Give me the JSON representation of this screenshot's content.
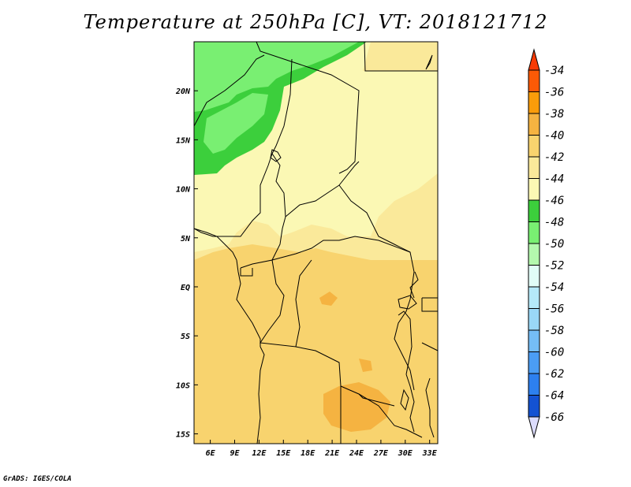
{
  "title": "Temperature at 250hPa [C], VT: 2018121712",
  "credit": "GrADS: IGES/COLA",
  "map": {
    "lon_range": [
      4,
      34
    ],
    "lat_range": [
      -16,
      25
    ],
    "lat_ticks": [
      {
        "value": 20,
        "label": "20N"
      },
      {
        "value": 15,
        "label": "15N"
      },
      {
        "value": 10,
        "label": "10N"
      },
      {
        "value": 5,
        "label": "5N"
      },
      {
        "value": 0,
        "label": "EQ"
      },
      {
        "value": -5,
        "label": "5S"
      },
      {
        "value": -10,
        "label": "10S"
      },
      {
        "value": -15,
        "label": "15S"
      }
    ],
    "lon_ticks": [
      {
        "value": 6,
        "label": "6E"
      },
      {
        "value": 9,
        "label": "9E"
      },
      {
        "value": 12,
        "label": "12E"
      },
      {
        "value": 15,
        "label": "15E"
      },
      {
        "value": 18,
        "label": "18E"
      },
      {
        "value": 21,
        "label": "21E"
      },
      {
        "value": 24,
        "label": "24E"
      },
      {
        "value": 27,
        "label": "27E"
      },
      {
        "value": 30,
        "label": "30E"
      },
      {
        "value": 33,
        "label": "33E"
      }
    ],
    "field_colors": {
      "-38_-36": "#f5b341",
      "-40_-38": "#f8d36e",
      "-42_-40": "#fae99a",
      "-44_-42": "#fbf8b4",
      "-46_-44": "#3ccf3c",
      "-48_-46": "#79ef72"
    }
  },
  "colorbar": {
    "labels": [
      "-34",
      "-36",
      "-38",
      "-40",
      "-42",
      "-44",
      "-46",
      "-48",
      "-50",
      "-52",
      "-54",
      "-56",
      "-58",
      "-60",
      "-62",
      "-64",
      "-66"
    ],
    "colors": [
      "#fb5a06",
      "#fa9c0a",
      "#f5b341",
      "#f8d36e",
      "#fae99a",
      "#fbf8b4",
      "#3ccf3c",
      "#79ef72",
      "#b4f8ae",
      "#e1fdf7",
      "#b5e9f9",
      "#9ad8f7",
      "#75bdf6",
      "#4b9df4",
      "#2d80ef",
      "#1452d2",
      "#0c1a7a"
    ],
    "top_arrow_color": "#f83b06",
    "bottom_arrow_color": "#dcdcfc"
  }
}
